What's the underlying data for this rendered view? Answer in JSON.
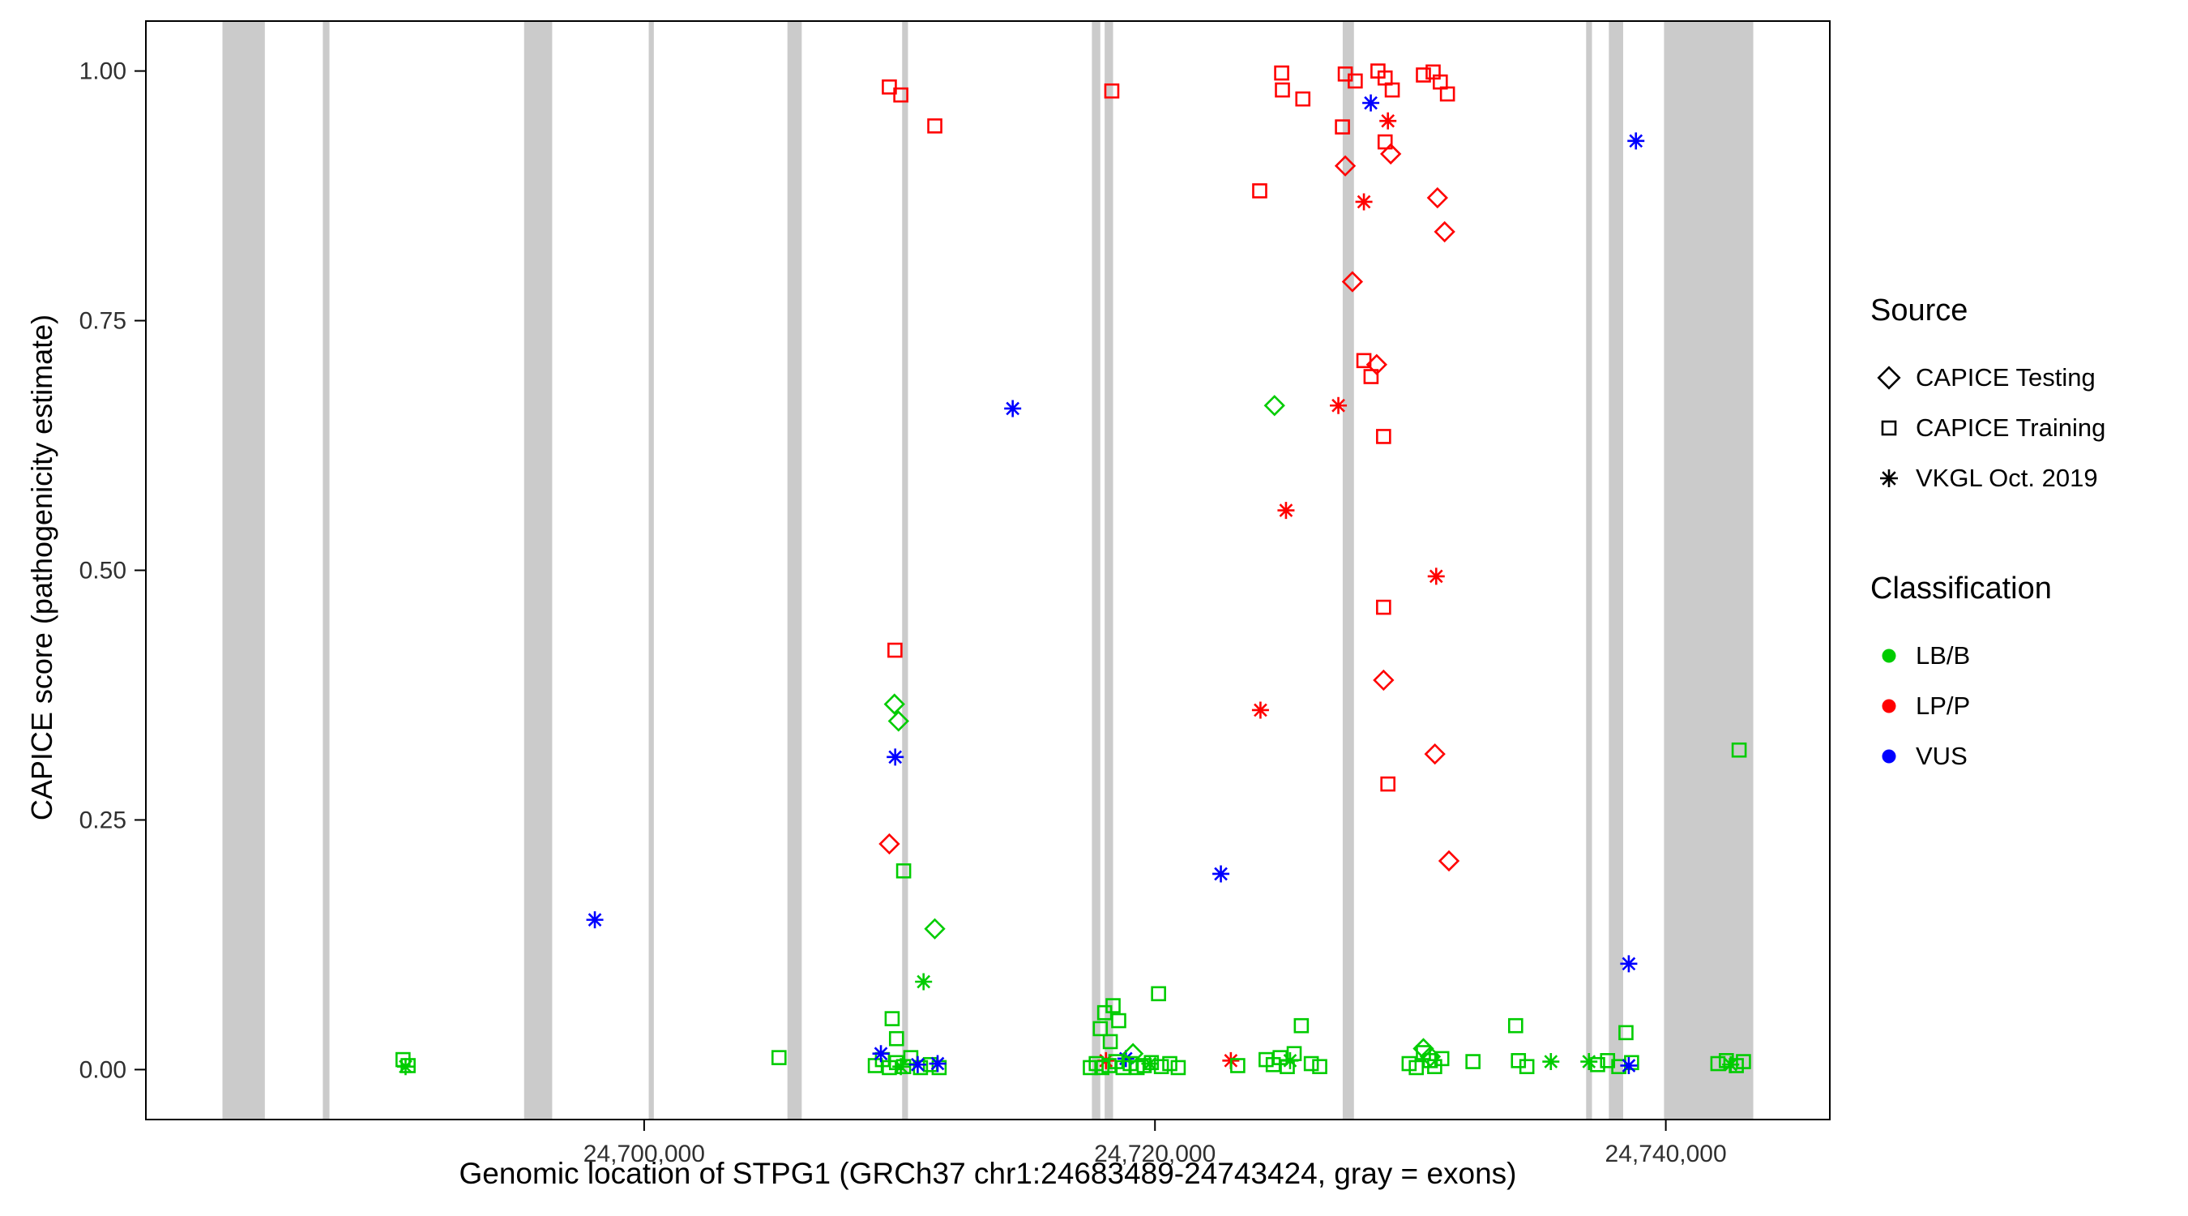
{
  "legend": {
    "source_title": "Source",
    "source_items": [
      {
        "label": "CAPICE Testing",
        "shape": "diamond"
      },
      {
        "label": "CAPICE Training",
        "shape": "square"
      },
      {
        "label": "VKGL Oct. 2019",
        "shape": "asterisk"
      }
    ],
    "classification_title": "Classification",
    "classification_items": [
      {
        "label": "LB/B",
        "color": "#00CC00"
      },
      {
        "label": "LP/P",
        "color": "#FF0000"
      },
      {
        "label": "VUS",
        "color": "#0000FF"
      }
    ]
  },
  "chart_data": {
    "type": "scatter",
    "title": "",
    "xlabel": "Genomic location of STPG1 (GRCh37 chr1:24683489-24743424, gray = exons)",
    "ylabel": "CAPICE score (pathogenicity estimate)",
    "x_domain": [
      24680492,
      24746421
    ],
    "y_domain": [
      -0.05,
      1.05
    ],
    "x_ticks": [
      {
        "value": 24700000,
        "label": "24,700,000"
      },
      {
        "value": 24720000,
        "label": "24,720,000"
      },
      {
        "value": 24740000,
        "label": "24,740,000"
      }
    ],
    "y_ticks": [
      {
        "value": 0.0,
        "label": "0.00"
      },
      {
        "value": 0.25,
        "label": "0.25"
      },
      {
        "value": 0.5,
        "label": "0.50"
      },
      {
        "value": 0.75,
        "label": "0.75"
      },
      {
        "value": 1.0,
        "label": "1.00"
      }
    ],
    "grid": false,
    "legend_position": "right",
    "exon_color": "#CBCBCB",
    "exons": [
      [
        24683490,
        24685150
      ],
      [
        24687420,
        24687680
      ],
      [
        24695300,
        24696400
      ],
      [
        24700180,
        24700380
      ],
      [
        24705610,
        24706170
      ],
      [
        24710100,
        24710330
      ],
      [
        24717530,
        24717860
      ],
      [
        24718030,
        24718360
      ],
      [
        24727350,
        24727790
      ],
      [
        24736880,
        24737110
      ],
      [
        24737770,
        24738330
      ],
      [
        24739930,
        24743424
      ]
    ],
    "class_colors": {
      "LB/B": "#00CC00",
      "LP/P": "#FF0000",
      "VUS": "#0000FF"
    },
    "source_shapes": {
      "testing": "diamond",
      "training": "square",
      "vkgl": "asterisk"
    },
    "point_format": [
      "genomic_position",
      "capice_score",
      "source",
      "classification"
    ],
    "points": [
      [
        24690560,
        0.01,
        "training",
        "LB/B"
      ],
      [
        24690760,
        0.004,
        "training",
        "LB/B"
      ],
      [
        24690660,
        0.003,
        "vkgl",
        "LB/B"
      ],
      [
        24698070,
        0.15,
        "vkgl",
        "VUS"
      ],
      [
        24705280,
        0.012,
        "training",
        "LB/B"
      ],
      [
        24709600,
        0.984,
        "training",
        "LP/P"
      ],
      [
        24710050,
        0.976,
        "training",
        "LP/P"
      ],
      [
        24711380,
        0.945,
        "training",
        "LP/P"
      ],
      [
        24709820,
        0.42,
        "training",
        "LP/P"
      ],
      [
        24709800,
        0.366,
        "testing",
        "LB/B"
      ],
      [
        24709960,
        0.349,
        "testing",
        "LB/B"
      ],
      [
        24709830,
        0.313,
        "vkgl",
        "VUS"
      ],
      [
        24709600,
        0.226,
        "testing",
        "LP/P"
      ],
      [
        24710160,
        0.199,
        "training",
        "LB/B"
      ],
      [
        24711380,
        0.141,
        "testing",
        "LB/B"
      ],
      [
        24710940,
        0.088,
        "vkgl",
        "LB/B"
      ],
      [
        24709710,
        0.051,
        "training",
        "LB/B"
      ],
      [
        24709880,
        0.031,
        "training",
        "LB/B"
      ],
      [
        24709050,
        0.004,
        "training",
        "LB/B"
      ],
      [
        24709330,
        0.01,
        "training",
        "LB/B"
      ],
      [
        24709600,
        0.002,
        "training",
        "LB/B"
      ],
      [
        24709880,
        0.007,
        "training",
        "LB/B"
      ],
      [
        24710160,
        0.003,
        "training",
        "LB/B"
      ],
      [
        24710440,
        0.012,
        "training",
        "LB/B"
      ],
      [
        24710820,
        0.002,
        "training",
        "LB/B"
      ],
      [
        24711210,
        0.005,
        "training",
        "LB/B"
      ],
      [
        24711550,
        0.002,
        "training",
        "LB/B"
      ],
      [
        24709270,
        0.016,
        "vkgl",
        "VUS"
      ],
      [
        24710710,
        0.005,
        "vkgl",
        "VUS"
      ],
      [
        24711490,
        0.006,
        "vkgl",
        "VUS"
      ],
      [
        24710050,
        0.003,
        "vkgl",
        "LB/B"
      ],
      [
        24714430,
        0.662,
        "vkgl",
        "VUS"
      ],
      [
        24718310,
        0.98,
        "training",
        "LP/P"
      ],
      [
        24717860,
        0.041,
        "training",
        "LB/B"
      ],
      [
        24718030,
        0.057,
        "training",
        "LB/B"
      ],
      [
        24718360,
        0.064,
        "training",
        "LB/B"
      ],
      [
        24718580,
        0.049,
        "training",
        "LB/B"
      ],
      [
        24718250,
        0.028,
        "training",
        "LB/B"
      ],
      [
        24720140,
        0.076,
        "training",
        "LB/B"
      ],
      [
        24718080,
        0.009,
        "vkgl",
        "LP/P"
      ],
      [
        24718860,
        0.011,
        "vkgl",
        "VUS"
      ],
      [
        24719140,
        0.016,
        "testing",
        "LB/B"
      ],
      [
        24717470,
        0.002,
        "training",
        "LB/B"
      ],
      [
        24717700,
        0.006,
        "training",
        "LB/B"
      ],
      [
        24717920,
        0.002,
        "training",
        "LB/B"
      ],
      [
        24718200,
        0.004,
        "training",
        "LB/B"
      ],
      [
        24718470,
        0.008,
        "training",
        "LB/B"
      ],
      [
        24718750,
        0.002,
        "training",
        "LB/B"
      ],
      [
        24719030,
        0.006,
        "training",
        "LB/B"
      ],
      [
        24719300,
        0.002,
        "training",
        "LB/B"
      ],
      [
        24719580,
        0.004,
        "training",
        "LB/B"
      ],
      [
        24719860,
        0.007,
        "training",
        "LB/B"
      ],
      [
        24720250,
        0.003,
        "training",
        "LB/B"
      ],
      [
        24720580,
        0.006,
        "training",
        "LB/B"
      ],
      [
        24720910,
        0.002,
        "training",
        "LB/B"
      ],
      [
        24719800,
        0.006,
        "vkgl",
        "LB/B"
      ],
      [
        24722580,
        0.196,
        "vkgl",
        "VUS"
      ],
      [
        24724130,
        0.36,
        "vkgl",
        "LP/P"
      ],
      [
        24724100,
        0.88,
        "training",
        "LP/P"
      ],
      [
        24724960,
        0.998,
        "training",
        "LP/P"
      ],
      [
        24724990,
        0.981,
        "training",
        "LP/P"
      ],
      [
        24725790,
        0.972,
        "training",
        "LP/P"
      ],
      [
        24725130,
        0.56,
        "vkgl",
        "LP/P"
      ],
      [
        24724680,
        0.665,
        "testing",
        "LB/B"
      ],
      [
        24727180,
        0.665,
        "vkgl",
        "LP/P"
      ],
      [
        24722970,
        0.009,
        "vkgl",
        "LP/P"
      ],
      [
        24723240,
        0.004,
        "training",
        "LB/B"
      ],
      [
        24724350,
        0.01,
        "training",
        "LB/B"
      ],
      [
        24724630,
        0.005,
        "training",
        "LB/B"
      ],
      [
        24724900,
        0.012,
        "training",
        "LB/B"
      ],
      [
        24725180,
        0.003,
        "training",
        "LB/B"
      ],
      [
        24725450,
        0.016,
        "training",
        "LB/B"
      ],
      [
        24725730,
        0.044,
        "training",
        "LB/B"
      ],
      [
        24726120,
        0.006,
        "training",
        "LB/B"
      ],
      [
        24726450,
        0.003,
        "training",
        "LB/B"
      ],
      [
        24725290,
        0.009,
        "vkgl",
        "LB/B"
      ],
      [
        24727450,
        0.997,
        "training",
        "LP/P"
      ],
      [
        24727840,
        0.99,
        "training",
        "LP/P"
      ],
      [
        24728730,
        1.0,
        "training",
        "LP/P"
      ],
      [
        24729010,
        0.993,
        "training",
        "LP/P"
      ],
      [
        24729290,
        0.981,
        "training",
        "LP/P"
      ],
      [
        24730510,
        0.996,
        "training",
        "LP/P"
      ],
      [
        24730890,
        0.999,
        "training",
        "LP/P"
      ],
      [
        24731170,
        0.989,
        "training",
        "LP/P"
      ],
      [
        24731450,
        0.977,
        "training",
        "LP/P"
      ],
      [
        24728450,
        0.968,
        "vkgl",
        "VUS"
      ],
      [
        24729120,
        0.95,
        "vkgl",
        "LP/P"
      ],
      [
        24727340,
        0.944,
        "training",
        "LP/P"
      ],
      [
        24729010,
        0.929,
        "training",
        "LP/P"
      ],
      [
        24729230,
        0.917,
        "testing",
        "LP/P"
      ],
      [
        24727450,
        0.905,
        "testing",
        "LP/P"
      ],
      [
        24728180,
        0.869,
        "vkgl",
        "LP/P"
      ],
      [
        24731060,
        0.873,
        "testing",
        "LP/P"
      ],
      [
        24731340,
        0.839,
        "testing",
        "LP/P"
      ],
      [
        24727730,
        0.789,
        "testing",
        "LP/P"
      ],
      [
        24728680,
        0.706,
        "testing",
        "LP/P"
      ],
      [
        24728180,
        0.71,
        "training",
        "LP/P"
      ],
      [
        24728460,
        0.694,
        "training",
        "LP/P"
      ],
      [
        24728950,
        0.634,
        "training",
        "LP/P"
      ],
      [
        24731010,
        0.494,
        "vkgl",
        "LP/P"
      ],
      [
        24728950,
        0.463,
        "training",
        "LP/P"
      ],
      [
        24728950,
        0.39,
        "testing",
        "LP/P"
      ],
      [
        24729120,
        0.286,
        "training",
        "LP/P"
      ],
      [
        24730960,
        0.316,
        "testing",
        "LP/P"
      ],
      [
        24731510,
        0.209,
        "testing",
        "LP/P"
      ],
      [
        24729950,
        0.006,
        "training",
        "LB/B"
      ],
      [
        24730230,
        0.002,
        "training",
        "LB/B"
      ],
      [
        24730510,
        0.017,
        "training",
        "LB/B"
      ],
      [
        24730780,
        0.009,
        "training",
        "LB/B"
      ],
      [
        24730950,
        0.003,
        "training",
        "LB/B"
      ],
      [
        24731230,
        0.011,
        "training",
        "LB/B"
      ],
      [
        24730510,
        0.021,
        "testing",
        "LB/B"
      ],
      [
        24730780,
        0.013,
        "testing",
        "LB/B"
      ],
      [
        24732450,
        0.008,
        "training",
        "LB/B"
      ],
      [
        24734120,
        0.044,
        "training",
        "LB/B"
      ],
      [
        24734230,
        0.009,
        "training",
        "LB/B"
      ],
      [
        24734560,
        0.003,
        "training",
        "LB/B"
      ],
      [
        24735500,
        0.008,
        "vkgl",
        "LB/B"
      ],
      [
        24738830,
        0.93,
        "vkgl",
        "VUS"
      ],
      [
        24738550,
        0.106,
        "vkgl",
        "VUS"
      ],
      [
        24738440,
        0.037,
        "training",
        "LB/B"
      ],
      [
        24737330,
        0.005,
        "training",
        "LB/B"
      ],
      [
        24737720,
        0.009,
        "training",
        "LB/B"
      ],
      [
        24738160,
        0.003,
        "training",
        "LB/B"
      ],
      [
        24738660,
        0.007,
        "training",
        "LB/B"
      ],
      [
        24738550,
        0.004,
        "vkgl",
        "VUS"
      ],
      [
        24736990,
        0.008,
        "vkgl",
        "LB/B"
      ],
      [
        24742870,
        0.32,
        "training",
        "LB/B"
      ],
      [
        24742040,
        0.006,
        "training",
        "LB/B"
      ],
      [
        24742370,
        0.009,
        "training",
        "LB/B"
      ],
      [
        24742760,
        0.004,
        "training",
        "LB/B"
      ],
      [
        24743040,
        0.008,
        "training",
        "LB/B"
      ],
      [
        24742540,
        0.005,
        "vkgl",
        "LB/B"
      ]
    ]
  }
}
